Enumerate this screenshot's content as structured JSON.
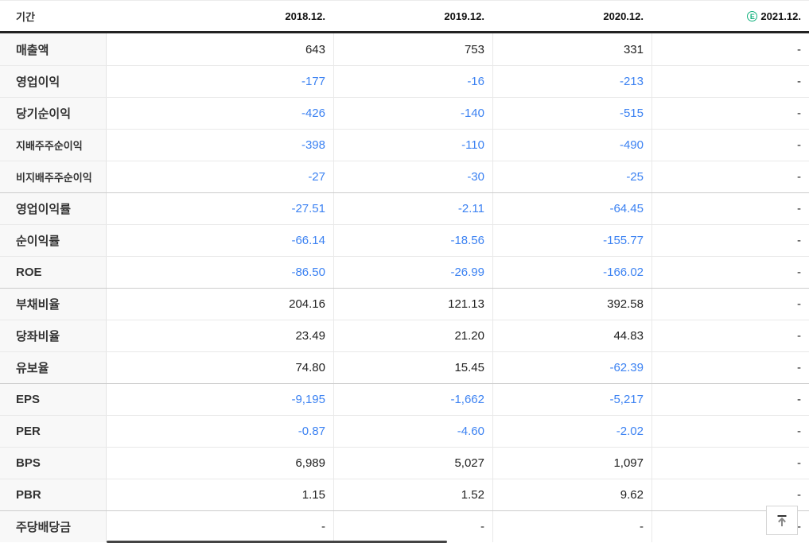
{
  "colors": {
    "negative_blue": "#3c82f2",
    "estimate_green": "#12b17d",
    "header_border": "#222222"
  },
  "header": {
    "period_label": "기간",
    "columns": [
      {
        "label": "2018.12."
      },
      {
        "label": "2019.12."
      },
      {
        "label": "2020.12."
      },
      {
        "label": "2021.12.",
        "estimate_badge": "E"
      }
    ]
  },
  "rows": [
    {
      "label": "매출액",
      "values": [
        "643",
        "753",
        "331",
        "-"
      ]
    },
    {
      "label": "영업이익",
      "values": [
        "-177",
        "-16",
        "-213",
        "-"
      ]
    },
    {
      "label": "당기순이익",
      "values": [
        "-426",
        "-140",
        "-515",
        "-"
      ]
    },
    {
      "label": "지배주주순이익",
      "sub": true,
      "values": [
        "-398",
        "-110",
        "-490",
        "-"
      ]
    },
    {
      "label": "비지배주주순이익",
      "sub": true,
      "values": [
        "-27",
        "-30",
        "-25",
        "-"
      ]
    },
    {
      "label": "영업이익률",
      "group": true,
      "values": [
        "-27.51",
        "-2.11",
        "-64.45",
        "-"
      ]
    },
    {
      "label": "순이익률",
      "values": [
        "-66.14",
        "-18.56",
        "-155.77",
        "-"
      ]
    },
    {
      "label": "ROE",
      "values": [
        "-86.50",
        "-26.99",
        "-166.02",
        "-"
      ]
    },
    {
      "label": "부채비율",
      "group": true,
      "values": [
        "204.16",
        "121.13",
        "392.58",
        "-"
      ]
    },
    {
      "label": "당좌비율",
      "values": [
        "23.49",
        "21.20",
        "44.83",
        "-"
      ]
    },
    {
      "label": "유보율",
      "values": [
        "74.80",
        "15.45",
        "-62.39",
        "-"
      ]
    },
    {
      "label": "EPS",
      "group": true,
      "values": [
        "-9,195",
        "-1,662",
        "-5,217",
        "-"
      ]
    },
    {
      "label": "PER",
      "values": [
        "-0.87",
        "-4.60",
        "-2.02",
        "-"
      ]
    },
    {
      "label": "BPS",
      "values": [
        "6,989",
        "5,027",
        "1,097",
        "-"
      ]
    },
    {
      "label": "PBR",
      "values": [
        "1.15",
        "1.52",
        "9.62",
        "-"
      ]
    },
    {
      "label": "주당배당금",
      "group": true,
      "values": [
        "-",
        "-",
        "-",
        "-"
      ]
    }
  ]
}
